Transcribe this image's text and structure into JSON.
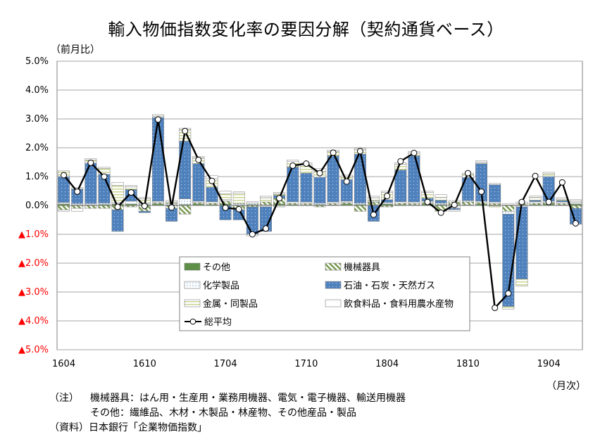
{
  "title": "輸入物価指数変化率の要因分解（契約通貨ベース）",
  "unit_top": "（前月比）",
  "unit_right": "（月次）",
  "notes": [
    {
      "label": "（注）",
      "text": "機械器具：はん用・生産用・業務用機器、電気・電子機器、輸送用機器"
    },
    {
      "label": "",
      "text": "その他：繊維品、木材・木製品・林産物、その他産品・製品"
    },
    {
      "label": "（資料）",
      "text": "日本銀行「企業物価指数」"
    }
  ],
  "colors": {
    "other": "#5d8f46",
    "machinery": "#7a9a52",
    "chemical": "#ffffff",
    "oil": "#4f81bd",
    "metal": "#c6d28a",
    "food": "#ffffff",
    "negative_tick": "#ff0000"
  },
  "chart_data": {
    "type": "bar",
    "stacked": true,
    "ylim": [
      -5.0,
      5.0
    ],
    "yticks": [
      {
        "value": 5.0,
        "label": "5.0%"
      },
      {
        "value": 4.0,
        "label": "4.0%"
      },
      {
        "value": 3.0,
        "label": "3.0%"
      },
      {
        "value": 2.0,
        "label": "2.0%"
      },
      {
        "value": 1.0,
        "label": "1.0%"
      },
      {
        "value": 0.0,
        "label": "0.0%"
      },
      {
        "value": -1.0,
        "label": "▲1.0%"
      },
      {
        "value": -2.0,
        "label": "▲2.0%"
      },
      {
        "value": -3.0,
        "label": "▲3.0%"
      },
      {
        "value": -4.0,
        "label": "▲4.0%"
      },
      {
        "value": -5.0,
        "label": "▲5.0%"
      }
    ],
    "grid": true,
    "legend_position": "bottom-center",
    "xtick_labels": [
      {
        "index": 0,
        "label": "1604"
      },
      {
        "index": 6,
        "label": "1610"
      },
      {
        "index": 12,
        "label": "1704"
      },
      {
        "index": 18,
        "label": "1710"
      },
      {
        "index": 24,
        "label": "1804"
      },
      {
        "index": 30,
        "label": "1810"
      },
      {
        "index": 36,
        "label": "1904"
      }
    ],
    "categories": [
      "1604",
      "1605",
      "1606",
      "1607",
      "1608",
      "1609",
      "1610",
      "1611",
      "1612",
      "1701",
      "1702",
      "1703",
      "1704",
      "1705",
      "1706",
      "1707",
      "1708",
      "1709",
      "1710",
      "1711",
      "1712",
      "1801",
      "1802",
      "1803",
      "1804",
      "1805",
      "1806",
      "1807",
      "1808",
      "1809",
      "1810",
      "1811",
      "1812",
      "1901",
      "1902",
      "1903",
      "1904",
      "1905",
      "1906"
    ],
    "series": [
      {
        "key": "other",
        "name": "その他",
        "values": [
          0.05,
          0.02,
          0.02,
          0.03,
          0.05,
          0.05,
          0.03,
          0.05,
          0.02,
          0.03,
          0.05,
          0.03,
          0.05,
          0.02,
          0.03,
          0.02,
          0.05,
          0.03,
          0.02,
          0.03,
          0.02,
          0.05,
          0.03,
          0.02,
          0.05,
          0.03,
          0.02,
          0.05,
          0.03,
          0.02,
          0.02,
          0.05,
          0.02,
          0.02,
          0.02,
          0.03,
          0.05,
          0.02,
          0.05
        ]
      },
      {
        "key": "machinery",
        "name": "機械器具",
        "values": [
          -0.15,
          -0.1,
          -0.1,
          -0.1,
          -0.15,
          -0.05,
          -0.2,
          0.05,
          -0.1,
          -0.3,
          0.05,
          0.05,
          0.1,
          -0.15,
          -0.05,
          0.1,
          0.2,
          0.05,
          0.05,
          -0.05,
          0.05,
          0.05,
          -0.2,
          0.1,
          -0.05,
          0.05,
          0.05,
          0.05,
          -0.2,
          0.1,
          0.1,
          0.05,
          0.05,
          -0.2,
          0.05,
          0.05,
          0.05,
          0.05,
          -0.1
        ]
      },
      {
        "key": "chemical",
        "name": "化学製品",
        "values": [
          0.05,
          0.05,
          0.05,
          0.05,
          0.05,
          0.1,
          0.05,
          0.05,
          0.05,
          0.2,
          0.05,
          0.05,
          0.05,
          0.05,
          0.05,
          -0.05,
          -0.05,
          0.05,
          0.05,
          0.05,
          0.05,
          0.05,
          0.05,
          0.05,
          0.05,
          0.05,
          0.05,
          0.05,
          0.05,
          -0.1,
          0.05,
          0.05,
          0.05,
          -0.1,
          -0.05,
          0.05,
          0.05,
          0.05,
          0.05
        ]
      },
      {
        "key": "oil",
        "name": "石油・石炭・天然ガス",
        "values": [
          0.9,
          0.5,
          1.4,
          1.0,
          -0.75,
          0.4,
          -0.05,
          2.9,
          -0.45,
          2.0,
          1.3,
          0.5,
          -0.5,
          -0.35,
          -0.95,
          -0.85,
          0.1,
          1.2,
          1.0,
          0.9,
          1.6,
          0.75,
          1.7,
          -0.55,
          0.1,
          1.1,
          1.6,
          0.1,
          0.1,
          -0.05,
          0.8,
          1.3,
          0.6,
          -3.2,
          -2.5,
          0.05,
          0.85,
          0.05,
          -0.55
        ]
      },
      {
        "key": "metal",
        "name": "金属・同製品",
        "values": [
          0.2,
          0.05,
          0.1,
          0.2,
          0.6,
          0.1,
          0.15,
          0.05,
          0.05,
          0.4,
          0.2,
          0.3,
          0.2,
          0.35,
          -0.05,
          0.15,
          0.05,
          0.2,
          0.3,
          0.2,
          0.15,
          0.1,
          0.15,
          0.1,
          0.25,
          0.2,
          0.1,
          0.2,
          0.1,
          -0.05,
          0.1,
          0.05,
          -0.05,
          -0.1,
          -0.25,
          0.1,
          0.1,
          0.05,
          0.05
        ]
      },
      {
        "key": "food",
        "name": "飲食料品・食料用農水産物",
        "values": [
          -0.05,
          -0.1,
          0.05,
          0.05,
          0.1,
          0.05,
          0.05,
          0.05,
          0.05,
          0.05,
          0.05,
          0.1,
          0.1,
          0.05,
          0.05,
          0.05,
          0.05,
          0.05,
          0.05,
          0.1,
          0.05,
          0.05,
          0.05,
          0.05,
          0.05,
          0.05,
          0.05,
          0.05,
          0.1,
          0.05,
          0.05,
          0.05,
          0.05,
          0.05,
          0.05,
          0.05,
          0.05,
          0.05,
          0.05
        ]
      }
    ],
    "line": {
      "key": "total",
      "name": "総平均",
      "values": [
        1.05,
        0.48,
        1.48,
        1.0,
        -0.05,
        0.45,
        -0.02,
        2.98,
        -0.07,
        2.58,
        1.58,
        0.85,
        -0.08,
        -0.13,
        -1.0,
        -0.8,
        0.25,
        1.38,
        1.45,
        1.12,
        1.83,
        0.83,
        1.88,
        -0.32,
        0.33,
        1.53,
        1.82,
        0.12,
        -0.25,
        0.02,
        1.12,
        0.48,
        -3.55,
        -3.05,
        0.12,
        1.02,
        0.12,
        0.8,
        -0.62
      ]
    }
  }
}
